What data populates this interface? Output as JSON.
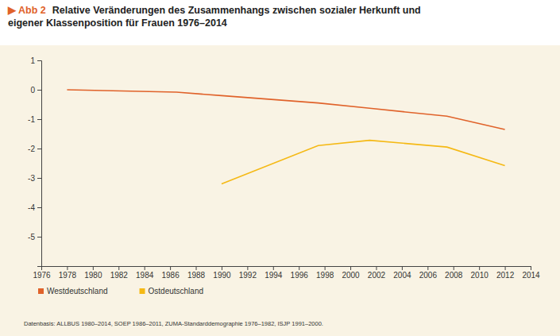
{
  "chart_data": {
    "type": "line",
    "label": "▶ Abb 2",
    "title": [
      "Relative Veränderungen des Zusammenhangs zwischen sozialer Herkunft und",
      "eigener Klassenposition für Frauen 1976–2014"
    ],
    "x": [
      1978,
      1986.5,
      1990,
      1997.5,
      2001.5,
      2007.5,
      2012
    ],
    "series": [
      {
        "name": "Westdeutschland",
        "color": "#e0622a",
        "values": [
          0,
          -0.08,
          -0.2,
          -0.45,
          -0.63,
          -0.9,
          -1.35
        ]
      },
      {
        "name": "Ostdeutschland",
        "color": "#f5b915",
        "values": [
          null,
          null,
          -3.2,
          -1.9,
          -1.72,
          -1.95,
          -2.58
        ]
      }
    ],
    "xlim": [
      1976,
      2014
    ],
    "xticks": [
      1976,
      1978,
      1980,
      1982,
      1984,
      1986,
      1988,
      1990,
      1992,
      1994,
      1996,
      1998,
      2000,
      2002,
      2004,
      2006,
      2008,
      2010,
      2012,
      2014
    ],
    "ylim": [
      -6,
      1
    ],
    "yticks": [
      1,
      0,
      -1,
      -2,
      -3,
      -4,
      -5
    ],
    "grid": false,
    "legend": "bottom-left",
    "source": "Datenbasis: ALLBUS 1980–2014, SOEP 1986–2011, ZUMA-Standarddemographie 1976–1982, ISJP 1991–2000."
  }
}
